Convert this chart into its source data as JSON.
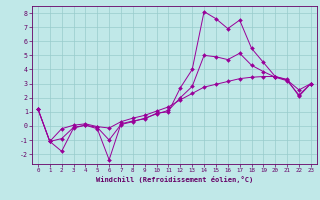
{
  "xlabel": "Windchill (Refroidissement éolien,°C)",
  "bg_color": "#c0e8e8",
  "grid_color": "#98cccc",
  "line_color": "#990099",
  "label_color": "#660066",
  "xlim": [
    -0.5,
    23.5
  ],
  "ylim": [
    -2.7,
    8.5
  ],
  "xticks": [
    0,
    1,
    2,
    3,
    4,
    5,
    6,
    7,
    8,
    9,
    10,
    11,
    12,
    13,
    14,
    15,
    16,
    17,
    18,
    19,
    20,
    21,
    22,
    23
  ],
  "yticks": [
    -2,
    -1,
    0,
    1,
    2,
    3,
    4,
    5,
    6,
    7,
    8
  ],
  "line1_x": [
    0,
    1,
    2,
    3,
    4,
    5,
    6,
    7,
    8,
    9,
    10,
    11,
    12,
    13,
    14,
    15,
    16,
    17,
    18,
    19,
    20,
    21,
    22,
    23
  ],
  "line1_y": [
    1.2,
    -1.1,
    -1.8,
    -0.15,
    0.05,
    -0.2,
    -2.4,
    0.15,
    0.35,
    0.5,
    0.9,
    1.0,
    2.7,
    4.0,
    8.1,
    7.6,
    6.9,
    7.5,
    5.5,
    4.5,
    3.5,
    3.3,
    2.1,
    3.0
  ],
  "line2_x": [
    0,
    1,
    2,
    3,
    4,
    5,
    6,
    7,
    8,
    9,
    10,
    11,
    12,
    13,
    14,
    15,
    16,
    17,
    18,
    19,
    20,
    21,
    22,
    23
  ],
  "line2_y": [
    1.2,
    -1.1,
    -0.2,
    0.05,
    0.15,
    -0.05,
    -0.15,
    0.3,
    0.55,
    0.75,
    1.05,
    1.35,
    1.85,
    2.3,
    2.75,
    2.95,
    3.15,
    3.35,
    3.45,
    3.5,
    3.5,
    3.25,
    2.55,
    3.0
  ],
  "line3_x": [
    0,
    1,
    2,
    3,
    4,
    5,
    6,
    7,
    8,
    9,
    10,
    11,
    12,
    13,
    14,
    15,
    16,
    17,
    18,
    19,
    20,
    21,
    22,
    23
  ],
  "line3_y": [
    1.2,
    -1.1,
    -0.9,
    -0.1,
    0.05,
    -0.1,
    -1.0,
    0.1,
    0.3,
    0.55,
    0.85,
    1.1,
    2.0,
    2.8,
    5.0,
    4.9,
    4.7,
    5.15,
    4.3,
    3.85,
    3.45,
    3.2,
    2.2,
    3.0
  ]
}
